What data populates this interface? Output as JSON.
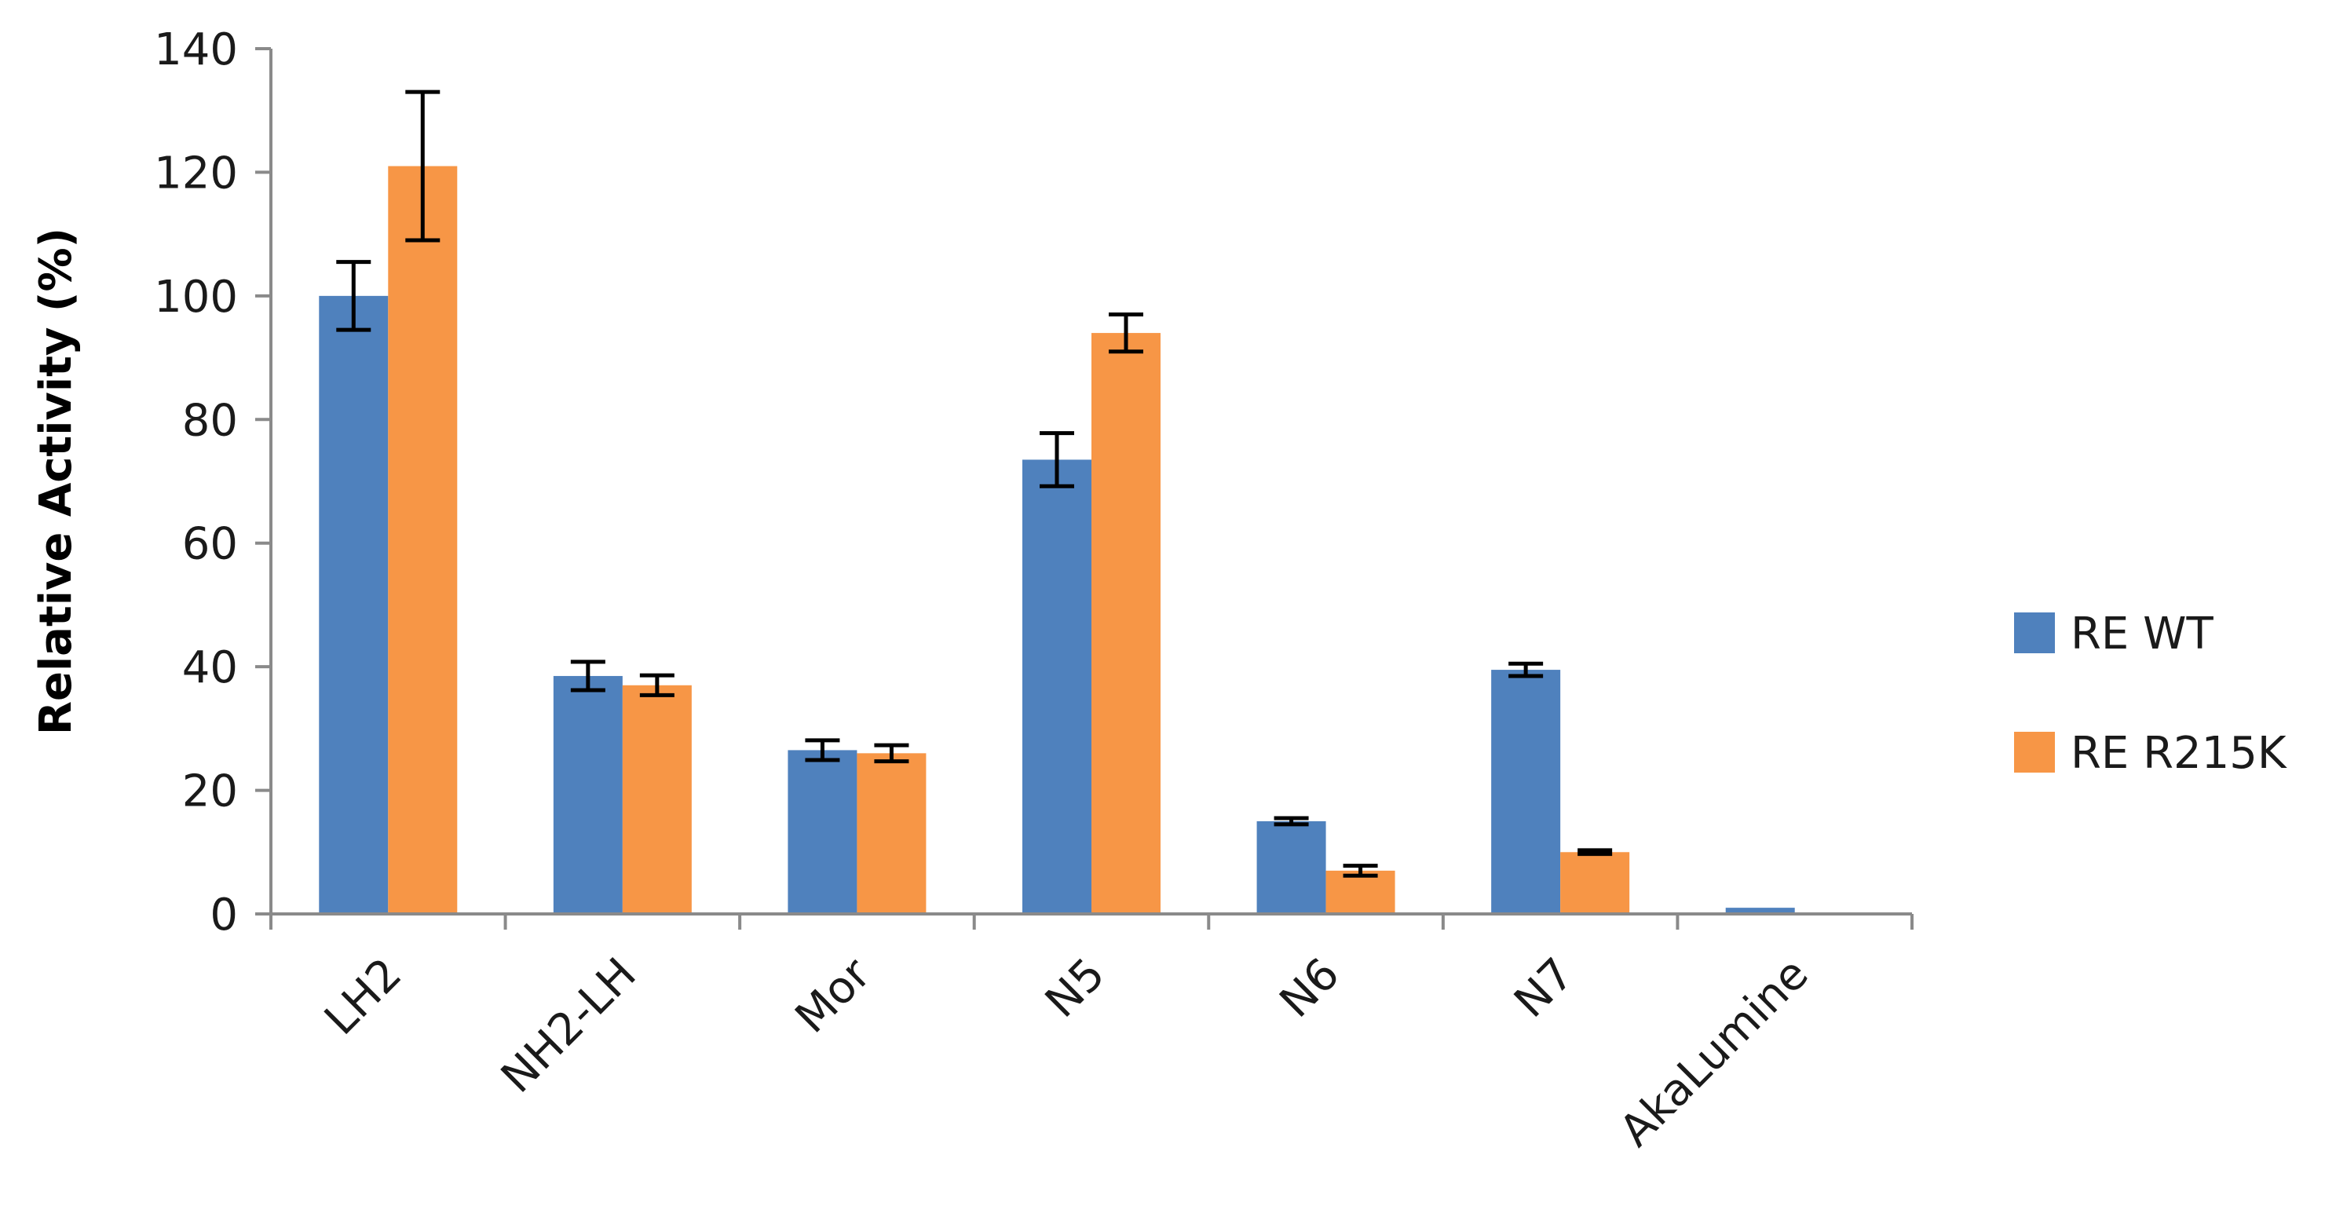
{
  "chart_data": {
    "type": "bar",
    "title": "",
    "xlabel": "",
    "ylabel": "Relative Activity (%)",
    "ylim": [
      0,
      140
    ],
    "yticks": [
      0,
      20,
      40,
      60,
      80,
      100,
      120,
      140
    ],
    "grid": false,
    "legend_position": "right",
    "categories": [
      "LH2",
      "NH2-LH",
      "Mor",
      "N5",
      "N6",
      "N7",
      "AkaLumine"
    ],
    "series": [
      {
        "name": "RE WT",
        "color": "#4f81bd",
        "values": [
          100,
          38.5,
          26.5,
          73.5,
          15,
          39.5,
          1
        ],
        "errors": [
          5.5,
          2.3,
          1.6,
          4.3,
          0.5,
          1.0,
          0
        ]
      },
      {
        "name": "RE R215K",
        "color": "#f79646",
        "values": [
          121,
          37,
          26,
          94,
          7,
          10,
          0
        ],
        "errors": [
          12,
          1.6,
          1.3,
          3.0,
          0.8,
          0.3,
          0
        ]
      }
    ]
  }
}
